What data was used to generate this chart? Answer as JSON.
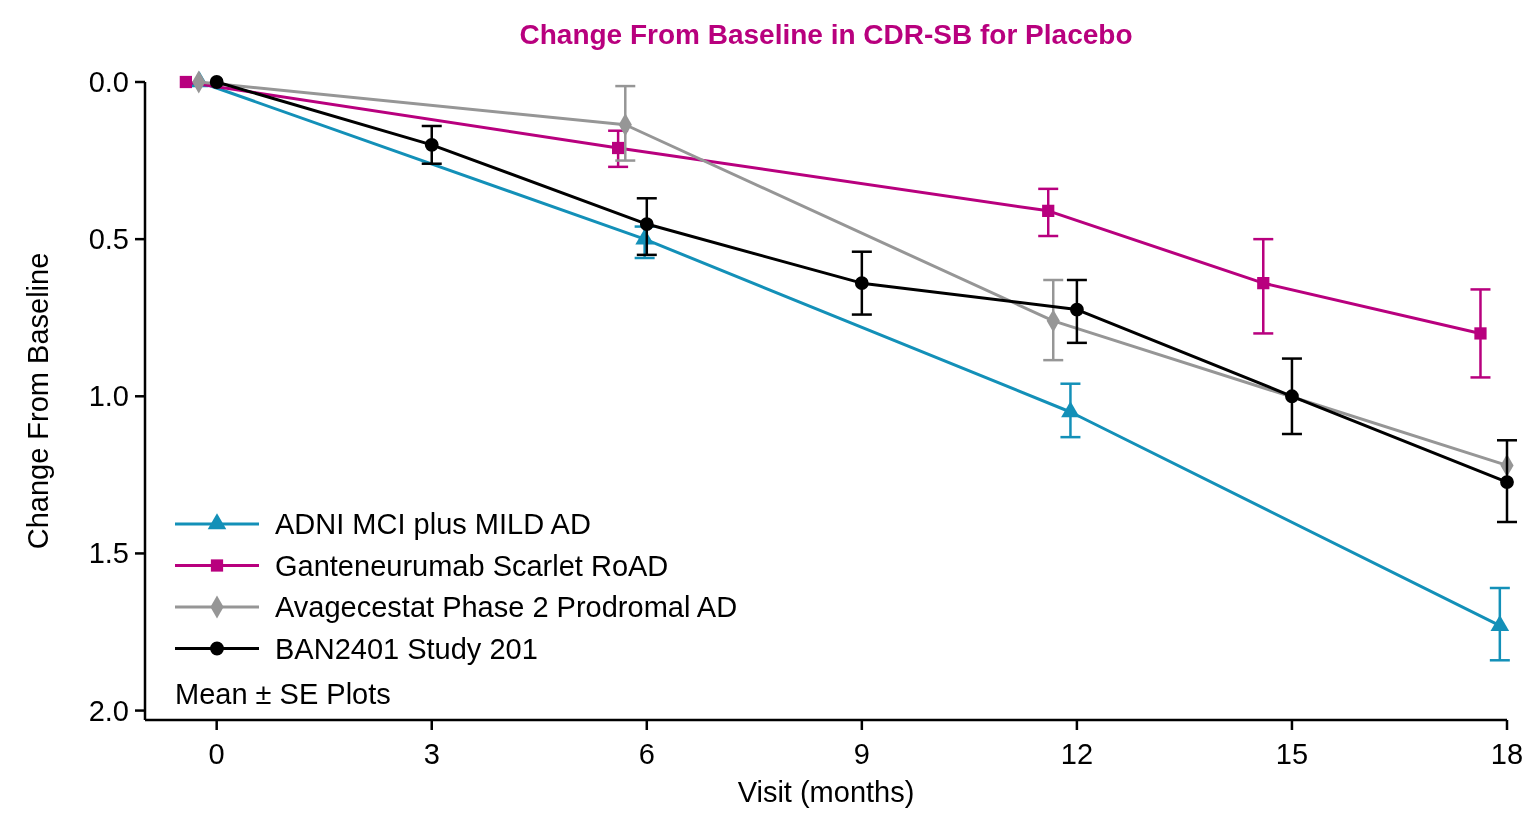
{
  "chart_data": {
    "type": "line",
    "title": "Change From Baseline in CDR-SB for Placebo",
    "xlabel": "Visit (months)",
    "ylabel": "Change From Baseline",
    "xlim": [
      -1,
      18
    ],
    "xticks": [
      0,
      3,
      6,
      9,
      12,
      15,
      18
    ],
    "ylim": [
      2.03,
      0
    ],
    "yticks": [
      {
        "value": 0,
        "label": "0.0"
      },
      {
        "value": 0.5,
        "label": "0.5"
      },
      {
        "value": 1,
        "label": "1.0"
      },
      {
        "value": 1.5,
        "label": "1.5"
      },
      {
        "value": 2,
        "label": "2.0"
      }
    ],
    "grid": false,
    "legend": "bottom left",
    "line_style": "solid",
    "annotations": [
      "Mean ± SE Plots"
    ],
    "series": [
      {
        "name": "ADNI MCI plus MILD AD",
        "color": "#1390b8",
        "marker": "triangle",
        "x": [
          -0.24,
          5.97,
          11.91,
          17.9
        ],
        "values": [
          0,
          0.5,
          1.05,
          1.73
        ],
        "errors": [
          null,
          [
            0.46,
            0.56
          ],
          [
            0.96,
            1.13
          ],
          [
            1.61,
            1.84
          ]
        ]
      },
      {
        "name": "Ganteneurumab Scarlet RoAD",
        "color": "#b8007e",
        "marker": "square",
        "x": [
          -0.43,
          5.6,
          11.6,
          14.6,
          17.63
        ],
        "values": [
          0,
          0.21,
          0.41,
          0.64,
          0.8
        ],
        "errors": [
          null,
          [
            0.155,
            0.27
          ],
          [
            0.34,
            0.49
          ],
          [
            0.5,
            0.8
          ],
          [
            0.66,
            0.94
          ]
        ]
      },
      {
        "name": "Avagecestat Phase 2 Prodromal AD",
        "color": "#969696",
        "marker": "diamond",
        "x": [
          -0.25,
          5.7,
          11.67,
          15,
          18
        ],
        "values": [
          0,
          0.136,
          0.76,
          null,
          1.22
        ],
        "errors": [
          null,
          [
            0.013,
            0.25
          ],
          [
            0.63,
            0.885
          ],
          null,
          null
        ]
      },
      {
        "name": "BAN2401 Study 201",
        "color": "#000000",
        "marker": "circle",
        "x": [
          0,
          3,
          6,
          9,
          12,
          15,
          18
        ],
        "values": [
          0,
          0.2,
          0.452,
          0.64,
          0.724,
          1.0,
          1.273
        ],
        "errors": [
          null,
          [
            0.14,
            0.26
          ],
          [
            0.37,
            0.55
          ],
          [
            0.54,
            0.74
          ],
          [
            0.63,
            0.83
          ],
          [
            0.88,
            1.12
          ],
          [
            1.14,
            1.4
          ]
        ]
      }
    ]
  }
}
